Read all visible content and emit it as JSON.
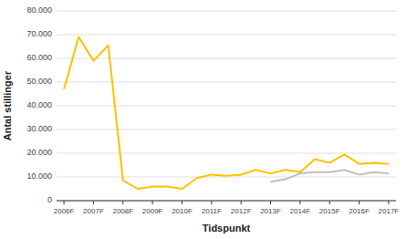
{
  "chart_data": {
    "type": "line",
    "xlabel": "Tidspunkt",
    "ylabel": "Antal stillinger",
    "categories": [
      "2006F",
      null,
      "2007F",
      null,
      "2008F",
      null,
      "2009F",
      null,
      "2010F",
      null,
      "2011F",
      null,
      "2012F",
      null,
      "2013F",
      null,
      "2014F",
      null,
      "2015F",
      null,
      "2016F",
      null,
      "2017F"
    ],
    "series": [
      {
        "color": "#FFC000",
        "values": [
          47000,
          69000,
          59000,
          65500,
          8500,
          5000,
          6000,
          6000,
          5000,
          9500,
          11000,
          10500,
          11000,
          13000,
          11500,
          13000,
          12000,
          17500,
          16000,
          19500,
          15500,
          16000,
          15500
        ]
      },
      {
        "color": "#C0C0C0",
        "values": [
          null,
          null,
          null,
          null,
          null,
          null,
          null,
          null,
          null,
          null,
          null,
          null,
          null,
          null,
          8000,
          9000,
          11500,
          12000,
          12000,
          13000,
          11000,
          12000,
          11500
        ]
      }
    ],
    "ylim": [
      0,
      80000
    ],
    "yticks": [
      0,
      {
        "value": 10000,
        "label": "10.000"
      },
      {
        "value": 20000,
        "label": "20.000"
      },
      {
        "value": 30000,
        "label": "30.000"
      },
      {
        "value": 40000,
        "label": "40.000"
      },
      {
        "value": 50000,
        "label": "50.000"
      },
      {
        "value": 60000,
        "label": "60.000"
      },
      {
        "value": 70000,
        "label": "70.000"
      },
      {
        "value": 80000,
        "label": "80.000"
      }
    ],
    "grid": true
  }
}
